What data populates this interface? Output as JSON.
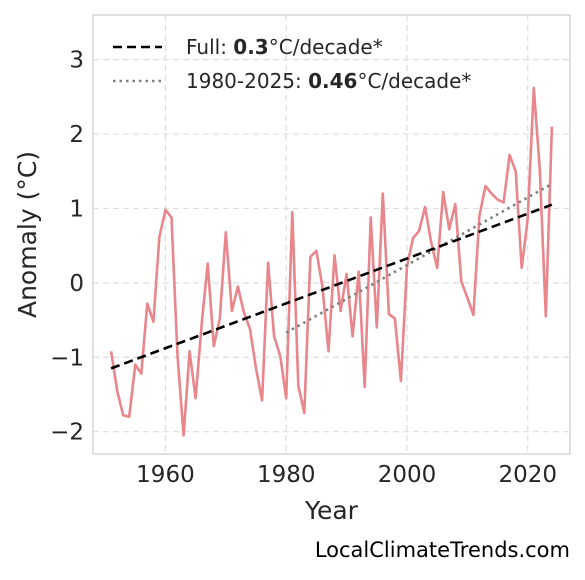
{
  "chart_data": {
    "type": "line",
    "xlabel": "Year",
    "ylabel": "Anomaly (°C)",
    "xlim": [
      1948,
      2027
    ],
    "ylim": [
      -2.3,
      3.6
    ],
    "xticks": [
      1960,
      1980,
      2000,
      2020
    ],
    "yticks": [
      -2,
      -1,
      0,
      1,
      2,
      3
    ],
    "ytick_labels": [
      "−2",
      "−1",
      "0",
      "1",
      "2",
      "3"
    ],
    "grid": true,
    "legend_position": "top-left",
    "colors": {
      "anomaly": "#e8868b",
      "full_trend": "#000000",
      "recent_trend": "#808080"
    },
    "series": [
      {
        "x": [
          1951,
          1952,
          1953,
          1954,
          1955,
          1956,
          1957,
          1958,
          1959,
          1960,
          1961,
          1962,
          1963,
          1964,
          1965,
          1966,
          1967,
          1968,
          1969,
          1970,
          1971,
          1972,
          1973,
          1974,
          1975,
          1976,
          1977,
          1978,
          1979,
          1980,
          1981,
          1982,
          1983,
          1984,
          1985,
          1986,
          1987,
          1988,
          1989,
          1990,
          1991,
          1992,
          1993,
          1994,
          1995,
          1996,
          1997,
          1998,
          1999,
          2000,
          2001,
          2002,
          2003,
          2004,
          2005,
          2006,
          2007,
          2008,
          2009,
          2010,
          2011,
          2012,
          2013,
          2014,
          2015,
          2016,
          2017,
          2018,
          2019,
          2020,
          2021,
          2022,
          2023,
          2024
        ],
        "values": [
          -0.92,
          -1.45,
          -1.78,
          -1.8,
          -1.1,
          -1.22,
          -0.28,
          -0.52,
          0.62,
          0.98,
          0.88,
          -0.98,
          -2.05,
          -0.92,
          -1.55,
          -0.55,
          0.26,
          -0.85,
          -0.48,
          0.68,
          -0.38,
          -0.05,
          -0.4,
          -0.62,
          -1.15,
          -1.58,
          0.27,
          -0.72,
          -0.98,
          -1.55,
          0.95,
          -1.38,
          -1.75,
          0.35,
          0.43,
          -0.05,
          -0.92,
          0.37,
          -0.38,
          0.12,
          -0.72,
          0.15,
          -1.4,
          0.88,
          -0.6,
          1.2,
          -0.42,
          -0.48,
          -1.32,
          0.22,
          0.6,
          0.7,
          1.02,
          0.55,
          0.2,
          1.22,
          0.72,
          1.06,
          0.02,
          -0.2,
          -0.43,
          0.9,
          1.3,
          1.2,
          1.12,
          1.08,
          1.72,
          1.5,
          0.2,
          0.86,
          2.62,
          1.52,
          -0.45,
          2.1
        ]
      },
      {
        "name": "Full: 0.3°C/decade*",
        "x": [
          1951,
          2024
        ],
        "values": [
          -1.15,
          1.05
        ]
      },
      {
        "name": "1980-2025: 0.46°C/decade*",
        "x": [
          1980,
          2024
        ],
        "values": [
          -0.67,
          1.33
        ]
      }
    ]
  },
  "legend": {
    "full_prefix": "Full: ",
    "full_value": "0.3",
    "full_suffix": "°C/decade*",
    "recent_prefix": "1980-2025: ",
    "recent_value": "0.46",
    "recent_suffix": "°C/decade*"
  },
  "watermark": "LocalClimateTrends.com"
}
